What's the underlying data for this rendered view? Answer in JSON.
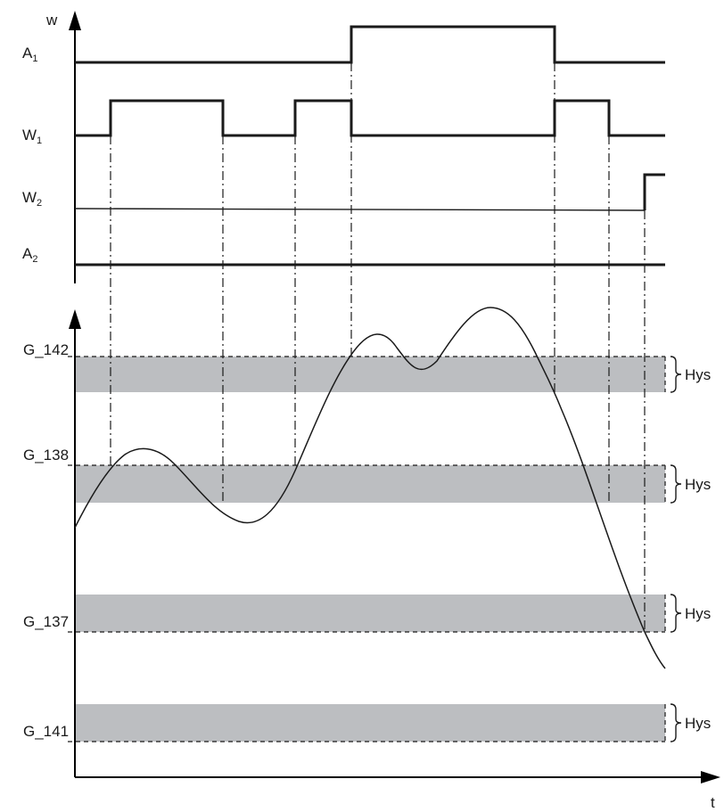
{
  "labels": {
    "w_axis": "w",
    "t_axis": "t",
    "A1_main": "A",
    "A1_sub": "1",
    "W1_main": "W",
    "W1_sub": "1",
    "W2_main": "W",
    "W2_sub": "2",
    "A2_main": "A",
    "A2_sub": "2"
  },
  "thresholds": [
    {
      "name": "G_142",
      "hys": "Hys"
    },
    {
      "name": "G_138",
      "hys": "Hys"
    },
    {
      "name": "G_137",
      "hys": "Hys"
    },
    {
      "name": "G_141",
      "hys": "Hys"
    }
  ],
  "colors": {
    "band": "#bcbec1",
    "line": "#1a1a1a"
  }
}
